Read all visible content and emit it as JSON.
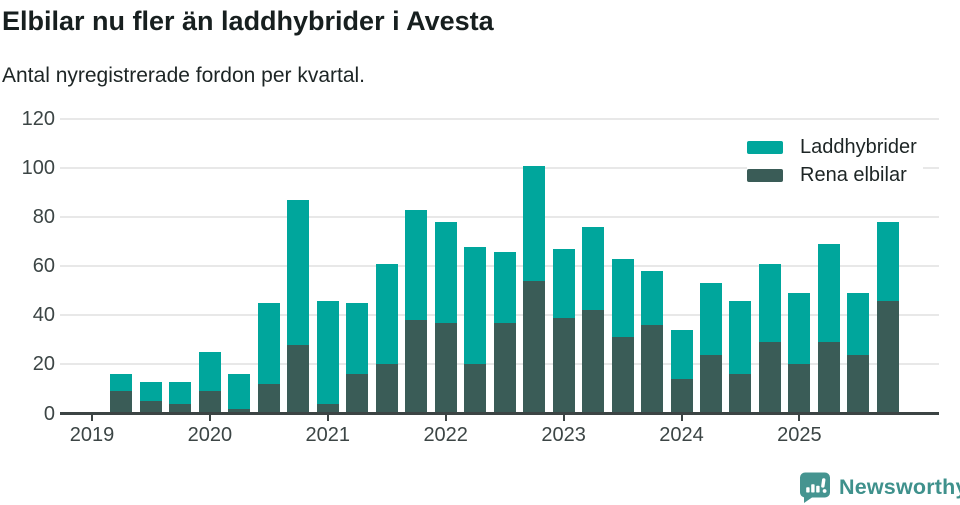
{
  "header": {
    "title": "Elbilar nu fler än laddhybrider i Avesta",
    "subtitle": "Antal nyregistrerade fordon per kvartal."
  },
  "legend": {
    "items": [
      {
        "label": "Laddhybrider",
        "color": "#00a69c"
      },
      {
        "label": "Rena elbilar",
        "color": "#3a5c57"
      }
    ]
  },
  "chart_data": {
    "type": "bar",
    "stacked": true,
    "title": "Elbilar nu fler än laddhybrider i Avesta",
    "subtitle": "Antal nyregistrerade fordon per kvartal.",
    "x": [
      "2019 Q1",
      "2019 Q2",
      "2019 Q3",
      "2019 Q4",
      "2020 Q1",
      "2020 Q2",
      "2020 Q3",
      "2020 Q4",
      "2021 Q1",
      "2021 Q2",
      "2021 Q3",
      "2021 Q4",
      "2022 Q1",
      "2022 Q2",
      "2022 Q3",
      "2022 Q4",
      "2023 Q1",
      "2023 Q2",
      "2023 Q3",
      "2023 Q4",
      "2024 Q1",
      "2024 Q2",
      "2024 Q3",
      "2024 Q4",
      "2025 Q1",
      "2025 Q2",
      "2025 Q3",
      "2025 Q4"
    ],
    "series": [
      {
        "name": "Rena elbilar",
        "color": "#3a5c57",
        "values": [
          0,
          9,
          5,
          4,
          9,
          2,
          12,
          28,
          4,
          16,
          20,
          38,
          37,
          20,
          37,
          54,
          39,
          42,
          31,
          36,
          14,
          24,
          16,
          29,
          20,
          29,
          24,
          46
        ]
      },
      {
        "name": "Laddhybrider",
        "color": "#00a69c",
        "values": [
          0,
          7,
          8,
          9,
          16,
          14,
          33,
          59,
          42,
          29,
          41,
          45,
          41,
          48,
          29,
          47,
          28,
          34,
          32,
          22,
          20,
          29,
          30,
          32,
          29,
          40,
          25,
          32
        ]
      }
    ],
    "stack_totals": [
      0,
      16,
      13,
      13,
      25,
      16,
      45,
      87,
      46,
      45,
      61,
      83,
      78,
      68,
      66,
      101,
      67,
      76,
      63,
      58,
      34,
      53,
      46,
      61,
      49,
      69,
      49,
      78
    ],
    "ylim": [
      0,
      120
    ],
    "yticks": [
      0,
      20,
      40,
      60,
      80,
      100,
      120
    ],
    "xticks": [
      "2019",
      "2020",
      "2021",
      "2022",
      "2023",
      "2024",
      "2025"
    ],
    "grid": "horizontal",
    "legend_position": "top-right"
  },
  "footer": {
    "brand": "Newsworthy",
    "brand_color": "#3f918c",
    "logo_icon": "bar-chart-speech-bubble"
  },
  "colors": {
    "axis": "#3c4444",
    "grid": "#e8e8e8",
    "tick_text": "#3c4545",
    "title_text": "#171f1f"
  }
}
